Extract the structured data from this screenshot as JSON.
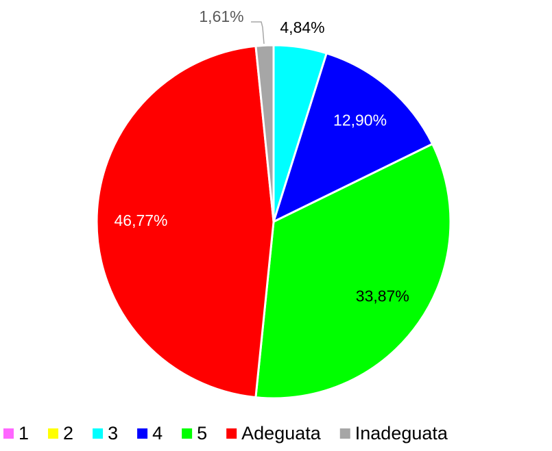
{
  "chart_data": {
    "type": "pie",
    "categories": [
      "1",
      "2",
      "3",
      "4",
      "5",
      "Adeguata",
      "Inadeguata"
    ],
    "values": [
      0,
      0,
      4.84,
      12.9,
      33.87,
      46.77,
      1.61
    ],
    "value_labels": [
      null,
      null,
      "4,84%",
      "12,90%",
      "33,87%",
      "46,77%",
      "1,61%"
    ],
    "colors": [
      "#ff66ff",
      "#ffff00",
      "#00ffff",
      "#0000ff",
      "#00ff00",
      "#ff0000",
      "#a6a6a6"
    ],
    "legend": "bottom"
  }
}
